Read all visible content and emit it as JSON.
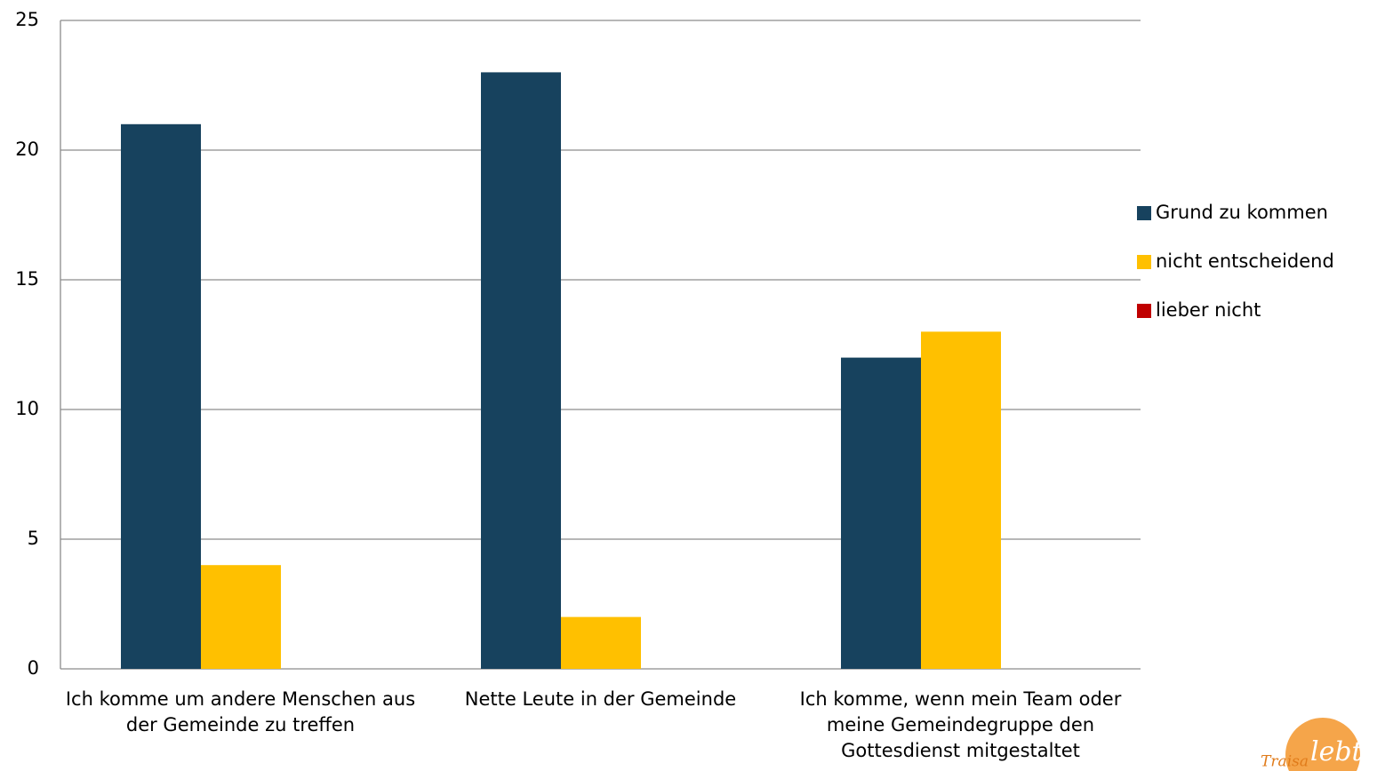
{
  "chart_data": {
    "type": "bar",
    "categories": [
      "Ich komme um andere Menschen aus der Gemeinde zu treffen",
      "Nette Leute in der Gemeinde",
      "Ich komme, wenn mein Team oder meine Gemeindegruppe den Gottesdienst mitgestaltet"
    ],
    "series": [
      {
        "name": "Grund zu kommen",
        "color": "#17425e",
        "values": [
          21,
          23,
          12
        ]
      },
      {
        "name": "nicht entscheidend",
        "color": "#ffc000",
        "values": [
          4,
          2,
          13
        ]
      },
      {
        "name": "lieber nicht",
        "color": "#c00000",
        "values": [
          0,
          0,
          0
        ]
      }
    ],
    "ylim": [
      0,
      25
    ],
    "yticks": [
      0,
      5,
      10,
      15,
      20,
      25
    ],
    "grid": true,
    "legend": "right"
  },
  "logo": "Traisa",
  "logo_accent": "lebt"
}
